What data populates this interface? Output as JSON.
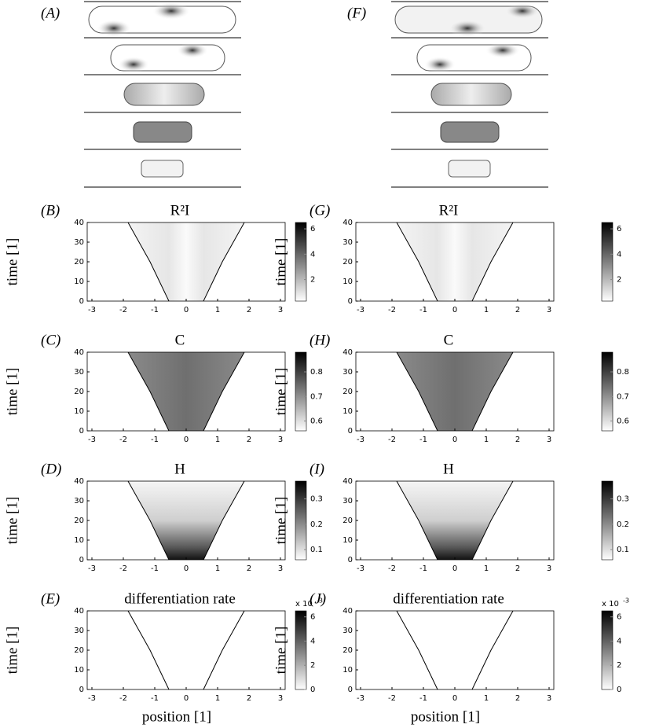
{
  "cell_panels": [
    {
      "label": "(A)"
    },
    {
      "label": "(F)"
    }
  ],
  "chart_data": [
    {
      "type": "heatmap",
      "label": "(B)",
      "title": "R²I",
      "ylabel": "time [1]",
      "xlim": [
        -3.15,
        3.15
      ],
      "ylim": [
        0,
        40
      ],
      "xticks": [
        -3,
        -2,
        -1,
        0,
        1,
        2,
        3
      ],
      "yticks": [
        0,
        10,
        20,
        30,
        40
      ],
      "clim": [
        0.3,
        6.5
      ],
      "cticks": [
        2,
        4,
        6
      ],
      "domain_edge": {
        "time": [
          0,
          10,
          20,
          30,
          40
        ],
        "position": [
          0.55,
          0.85,
          1.15,
          1.5,
          1.85
        ]
      }
    },
    {
      "type": "heatmap",
      "label": "(C)",
      "title": "C",
      "ylabel": "time [1]",
      "xlim": [
        -3.15,
        3.15
      ],
      "ylim": [
        0,
        40
      ],
      "xticks": [
        -3,
        -2,
        -1,
        0,
        1,
        2,
        3
      ],
      "yticks": [
        0,
        10,
        20,
        30,
        40
      ],
      "clim": [
        0.56,
        0.88
      ],
      "cticks": [
        0.6,
        0.7,
        0.8
      ],
      "domain_edge": {
        "time": [
          0,
          10,
          20,
          30,
          40
        ],
        "position": [
          0.55,
          0.85,
          1.15,
          1.5,
          1.85
        ]
      }
    },
    {
      "type": "heatmap",
      "label": "(D)",
      "title": "H",
      "ylabel": "time [1]",
      "xlim": [
        -3.15,
        3.15
      ],
      "ylim": [
        0,
        40
      ],
      "xticks": [
        -3,
        -2,
        -1,
        0,
        1,
        2,
        3
      ],
      "yticks": [
        0,
        10,
        20,
        30,
        40
      ],
      "clim": [
        0.06,
        0.37
      ],
      "cticks": [
        0.1,
        0.2,
        0.3
      ],
      "domain_edge": {
        "time": [
          0,
          10,
          20,
          30,
          40
        ],
        "position": [
          0.55,
          0.85,
          1.15,
          1.5,
          1.85
        ]
      }
    },
    {
      "type": "heatmap",
      "label": "(E)",
      "title": "differentiation rate",
      "ylabel": "time [1]",
      "xlabel": "position [1]",
      "xlim": [
        -3.15,
        3.15
      ],
      "ylim": [
        0,
        40
      ],
      "xticks": [
        -3,
        -2,
        -1,
        0,
        1,
        2,
        3
      ],
      "yticks": [
        0,
        10,
        20,
        30,
        40
      ],
      "clim": [
        0,
        6.5
      ],
      "cticks": [
        0,
        2,
        4,
        6
      ],
      "cscale": "x 10",
      "cscale_exp": "-3",
      "domain_edge": {
        "time": [
          0,
          10,
          20,
          30,
          40
        ],
        "position": [
          0.55,
          0.85,
          1.15,
          1.5,
          1.85
        ]
      }
    },
    {
      "type": "heatmap",
      "label": "(G)",
      "title": "R²I",
      "ylabel": "time [1]",
      "xlim": [
        -3.15,
        3.15
      ],
      "ylim": [
        0,
        40
      ],
      "xticks": [
        -3,
        -2,
        -1,
        0,
        1,
        2,
        3
      ],
      "yticks": [
        0,
        10,
        20,
        30,
        40
      ],
      "clim": [
        0.3,
        6.5
      ],
      "cticks": [
        2,
        4,
        6
      ],
      "domain_edge": {
        "time": [
          0,
          10,
          20,
          30,
          40
        ],
        "position": [
          0.55,
          0.85,
          1.15,
          1.5,
          1.85
        ]
      }
    },
    {
      "type": "heatmap",
      "label": "(H)",
      "title": "C",
      "ylabel": "time [1]",
      "xlim": [
        -3.15,
        3.15
      ],
      "ylim": [
        0,
        40
      ],
      "xticks": [
        -3,
        -2,
        -1,
        0,
        1,
        2,
        3
      ],
      "yticks": [
        0,
        10,
        20,
        30,
        40
      ],
      "clim": [
        0.56,
        0.88
      ],
      "cticks": [
        0.6,
        0.7,
        0.8
      ],
      "domain_edge": {
        "time": [
          0,
          10,
          20,
          30,
          40
        ],
        "position": [
          0.55,
          0.85,
          1.15,
          1.5,
          1.85
        ]
      }
    },
    {
      "type": "heatmap",
      "label": "(I)",
      "title": "H",
      "ylabel": "time [1]",
      "xlim": [
        -3.15,
        3.15
      ],
      "ylim": [
        0,
        40
      ],
      "xticks": [
        -3,
        -2,
        -1,
        0,
        1,
        2,
        3
      ],
      "yticks": [
        0,
        10,
        20,
        30,
        40
      ],
      "clim": [
        0.06,
        0.37
      ],
      "cticks": [
        0.1,
        0.2,
        0.3
      ],
      "domain_edge": {
        "time": [
          0,
          10,
          20,
          30,
          40
        ],
        "position": [
          0.55,
          0.85,
          1.15,
          1.5,
          1.85
        ]
      }
    },
    {
      "type": "heatmap",
      "label": "(J)",
      "title": "differentiation rate",
      "ylabel": "time [1]",
      "xlabel": "position [1]",
      "xlim": [
        -3.15,
        3.15
      ],
      "ylim": [
        0,
        40
      ],
      "xticks": [
        -3,
        -2,
        -1,
        0,
        1,
        2,
        3
      ],
      "yticks": [
        0,
        10,
        20,
        30,
        40
      ],
      "clim": [
        0,
        6.5
      ],
      "cticks": [
        0,
        2,
        4,
        6
      ],
      "cscale": "x 10",
      "cscale_exp": "-3",
      "domain_edge": {
        "time": [
          0,
          10,
          20,
          30,
          40
        ],
        "position": [
          0.55,
          0.85,
          1.15,
          1.5,
          1.85
        ]
      }
    }
  ]
}
